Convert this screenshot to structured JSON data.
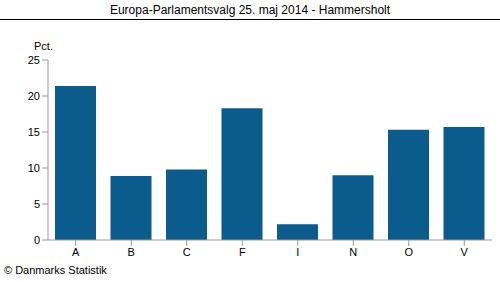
{
  "chart_data": {
    "type": "bar",
    "title": "Europa-Parlamentsvalg 25. maj 2014 - Hammersholt",
    "y_label": "Pct.",
    "annotation": "© Danmarks Statistik",
    "categories": [
      "A",
      "B",
      "C",
      "F",
      "I",
      "N",
      "O",
      "V"
    ],
    "values": [
      21.4,
      8.9,
      9.8,
      18.3,
      2.2,
      9.0,
      15.3,
      15.7
    ],
    "color": "#0b5c8c",
    "ylim": [
      0,
      25
    ],
    "yticks": [
      0,
      5,
      10,
      15,
      20,
      25
    ],
    "grid": false
  }
}
